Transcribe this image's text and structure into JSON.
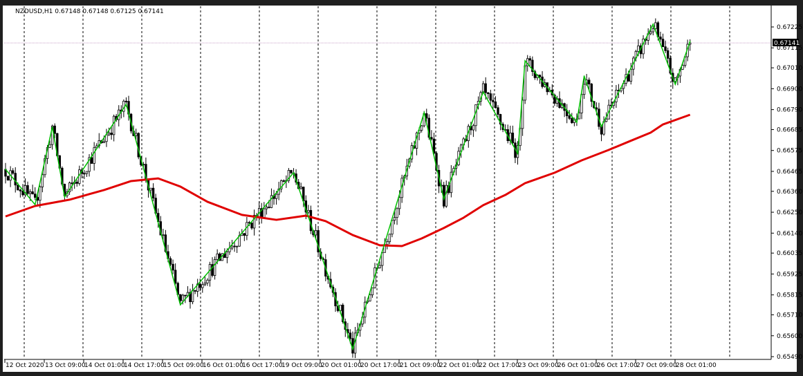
{
  "header": {
    "symbol": "NZDUSD,H1",
    "ohlc": "0.67148 0.67148 0.67125 0.67141"
  },
  "chart_data": {
    "type": "candlestick",
    "title": "NZDUSD,H1  0.67148 0.67148 0.67125 0.67141",
    "timeframe": "H1",
    "current_price": "0.67141",
    "ylim": [
      0.6549,
      0.67225
    ],
    "y_ticks": [
      "0.67225",
      "0.67115",
      "0.67010",
      "0.66900",
      "0.66790",
      "0.66685",
      "0.66575",
      "0.66465",
      "0.66360",
      "0.66250",
      "0.66140",
      "0.66035",
      "0.65925",
      "0.65815",
      "0.65710",
      "0.65600",
      "0.65490"
    ],
    "x_ticks": [
      "12 Oct 2020",
      "13 Oct 09:00",
      "14 Oct 01:00",
      "14 Oct 17:00",
      "15 Oct 09:00",
      "16 Oct 01:00",
      "16 Oct 17:00",
      "19 Oct 09:00",
      "20 Oct 01:00",
      "20 Oct 17:00",
      "21 Oct 09:00",
      "22 Oct 01:00",
      "22 Oct 17:00",
      "23 Oct 09:00",
      "26 Oct 01:00",
      "26 Oct 17:00",
      "27 Oct 09:00",
      "28 Oct 01:00"
    ],
    "grid": "vertical-dashed-daily",
    "series": [
      {
        "kind": "zigzag",
        "color": "#00c000",
        "points": [
          [
            0,
            0.66476
          ],
          [
            12,
            0.6629
          ],
          [
            19,
            0.66698
          ],
          [
            24,
            0.6633
          ],
          [
            49,
            0.66818
          ],
          [
            71,
            0.65763
          ],
          [
            117,
            0.66458
          ],
          [
            141,
            0.6553
          ],
          [
            170,
            0.66774
          ],
          [
            178,
            0.66319
          ],
          [
            194,
            0.66883
          ],
          [
            208,
            0.66559
          ],
          [
            211,
            0.67047
          ],
          [
            232,
            0.66723
          ],
          [
            235,
            0.66967
          ],
          [
            242,
            0.66701
          ],
          [
            263,
            0.6724
          ],
          [
            272,
            0.66923
          ],
          [
            278,
            0.67149
          ]
        ]
      },
      {
        "kind": "moving-average",
        "color": "#e00000",
        "points": [
          [
            0,
            0.66228
          ],
          [
            12,
            0.66283
          ],
          [
            26,
            0.66316
          ],
          [
            40,
            0.66367
          ],
          [
            51,
            0.66414
          ],
          [
            62,
            0.66428
          ],
          [
            71,
            0.66385
          ],
          [
            82,
            0.66305
          ],
          [
            96,
            0.66236
          ],
          [
            110,
            0.6621
          ],
          [
            122,
            0.66232
          ],
          [
            130,
            0.66203
          ],
          [
            141,
            0.6613
          ],
          [
            152,
            0.66076
          ],
          [
            161,
            0.66072
          ],
          [
            169,
            0.66112
          ],
          [
            178,
            0.66167
          ],
          [
            186,
            0.66221
          ],
          [
            194,
            0.66287
          ],
          [
            203,
            0.66341
          ],
          [
            211,
            0.66403
          ],
          [
            223,
            0.66458
          ],
          [
            234,
            0.66523
          ],
          [
            245,
            0.66578
          ],
          [
            253,
            0.66621
          ],
          [
            262,
            0.66669
          ],
          [
            267,
            0.66712
          ],
          [
            278,
            0.66763
          ]
        ]
      }
    ]
  },
  "colors": {
    "background": "#ffffff",
    "frame": "#1f1f1f",
    "bull_body": "#ffffff",
    "bear_body": "#000000",
    "price_line": "#c8a0c8",
    "price_label_bg": "#000000"
  }
}
